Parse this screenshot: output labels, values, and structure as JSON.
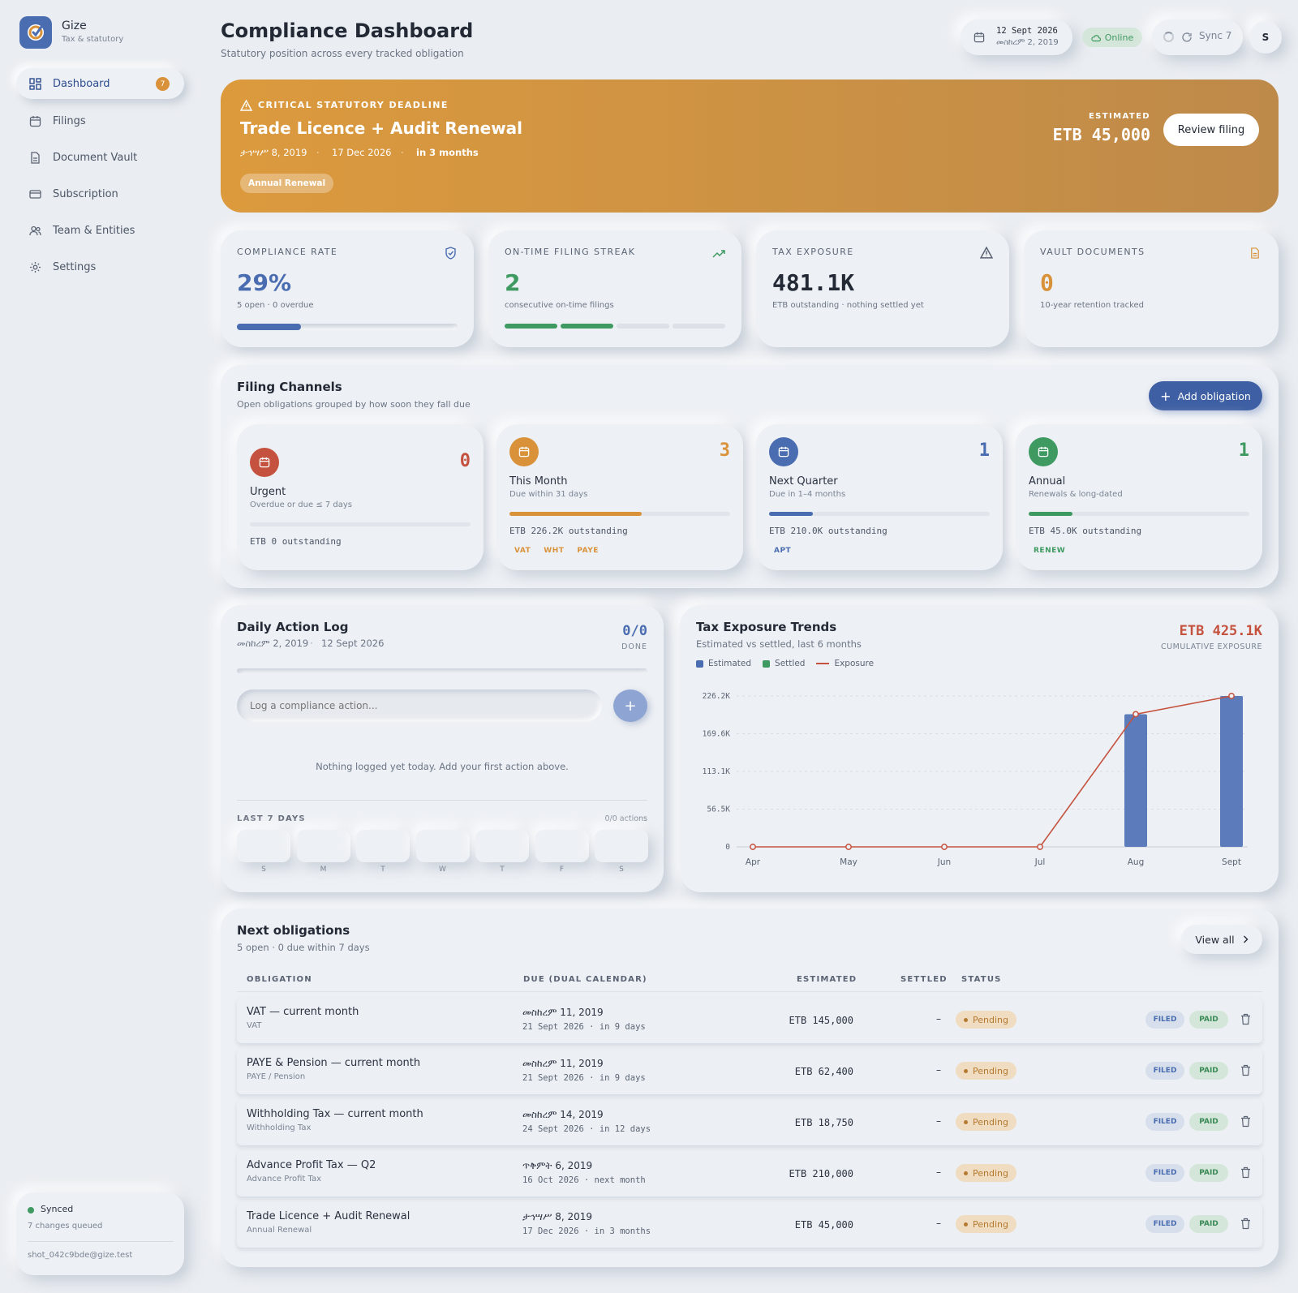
{
  "brand": {
    "name": "Gize",
    "sub": "Tax & statutory"
  },
  "nav": [
    {
      "label": "Dashboard",
      "icon": "dashboard-icon",
      "badge": "7"
    },
    {
      "label": "Filings",
      "icon": "calendar-icon"
    },
    {
      "label": "Document Vault",
      "icon": "document-icon"
    },
    {
      "label": "Subscription",
      "icon": "card-icon"
    },
    {
      "label": "Team & Entities",
      "icon": "team-icon"
    },
    {
      "label": "Settings",
      "icon": "gear-icon"
    }
  ],
  "sync": {
    "status": "Synced",
    "queued": "7 changes queued",
    "email": "shot_042c9bde@gize.test"
  },
  "header": {
    "title": "Compliance Dashboard",
    "subtitle": "Statutory position across every tracked obligation",
    "date_greg": "12 Sept 2026",
    "date_eth": "መስከረም 2, 2019",
    "online": "Online",
    "sync": "Sync 7",
    "avatar": "S"
  },
  "banner": {
    "kicker": "CRITICAL STATUTORY DEADLINE",
    "title": "Trade Licence + Audit Renewal",
    "date_eth": "ታኅሣሥ 8, 2019",
    "sep1": "·",
    "date_greg": "17 Dec 2026",
    "sep2": "·",
    "relative": "in 3 months",
    "tag": "Annual Renewal",
    "est_label": "ESTIMATED",
    "est_value": "ETB 45,000",
    "button": "Review filing"
  },
  "stats": [
    {
      "label": "COMPLIANCE RATE",
      "value": "29%",
      "note": "5 open · 0 overdue",
      "progress": 0.29,
      "color": "#4a6cb0"
    },
    {
      "label": "ON-TIME FILING STREAK",
      "value": "2",
      "note": "consecutive on-time filings",
      "segments_filled": 2,
      "segments_total": 4,
      "color": "#3f9a62"
    },
    {
      "label": "TAX EXPOSURE",
      "value": "481.1K",
      "note": "ETB outstanding · nothing settled yet",
      "color": "#232a36"
    },
    {
      "label": "VAULT DOCUMENTS",
      "value": "0",
      "note": "10-year retention tracked",
      "color": "#d9923a"
    }
  ],
  "channels": {
    "title": "Filing Channels",
    "subtitle": "Open obligations grouped by how soon they fall due",
    "add_button": "Add obligation",
    "items": [
      {
        "name": "Urgent",
        "desc": "Overdue or due ≤ 7 days",
        "count": "0",
        "outstanding": "ETB 0 outstanding",
        "progress": 0,
        "color": "#c5523f",
        "tags": []
      },
      {
        "name": "This Month",
        "desc": "Due within 31 days",
        "count": "3",
        "outstanding": "ETB 226.2K outstanding",
        "progress": 0.6,
        "color": "#d9923a",
        "tags": [
          "VAT",
          "WHT",
          "PAYE"
        ]
      },
      {
        "name": "Next Quarter",
        "desc": "Due in 1–4 months",
        "count": "1",
        "outstanding": "ETB 210.0K outstanding",
        "progress": 0.2,
        "color": "#4a6cb0",
        "tags": [
          "APT"
        ]
      },
      {
        "name": "Annual",
        "desc": "Renewals & long-dated",
        "count": "1",
        "outstanding": "ETB 45.0K outstanding",
        "progress": 0.2,
        "color": "#3f9a62",
        "tags": [
          "RENEW"
        ]
      }
    ]
  },
  "log": {
    "title": "Daily Action Log",
    "date_eth": "መስከረም 2, 2019",
    "sep": "·",
    "date_greg": "12 Sept 2026",
    "done_count": "0/0",
    "done_label": "DONE",
    "placeholder": "Log a compliance action...",
    "empty": "Nothing logged yet today. Add your first action above.",
    "last7_label": "LAST 7 DAYS",
    "last7_count": "0/0 actions",
    "days": [
      "S",
      "M",
      "T",
      "W",
      "T",
      "F",
      "S"
    ]
  },
  "chart_data": {
    "type": "bar",
    "title": "Tax Exposure Trends",
    "subtitle": "Estimated vs settled, last 6 months",
    "headline": "ETB 425.1K",
    "headline_label": "CUMULATIVE EXPOSURE",
    "categories": [
      "Apr",
      "May",
      "Jun",
      "Jul",
      "Aug",
      "Sept"
    ],
    "series": [
      {
        "name": "Estimated",
        "kind": "bar",
        "color": "#5b7bbb",
        "values": [
          0,
          0,
          0,
          0,
          198900,
          226200
        ]
      },
      {
        "name": "Settled",
        "kind": "bar",
        "color": "#3f9a62",
        "values": [
          0,
          0,
          0,
          0,
          0,
          0
        ]
      },
      {
        "name": "Exposure",
        "kind": "line",
        "color": "#c5523f",
        "values": [
          0,
          0,
          0,
          0,
          198900,
          226200
        ]
      }
    ],
    "y_ticks": [
      "0",
      "56.5K",
      "113.1K",
      "169.6K",
      "226.2K"
    ],
    "ylim": [
      0,
      226200
    ],
    "grid": true,
    "legend": "top-left"
  },
  "table": {
    "title": "Next obligations",
    "subtitle": "5 open · 0 due within 7 days",
    "view_all": "View all",
    "columns": [
      "OBLIGATION",
      "DUE (DUAL CALENDAR)",
      "ESTIMATED",
      "SETTLED",
      "STATUS"
    ],
    "rows": [
      {
        "name": "VAT — current month",
        "type": "VAT",
        "due_eth": "መስከረም 11, 2019",
        "due_greg": "21 Sept 2026 · in 9 days",
        "estimated": "ETB 145,000",
        "settled": "–",
        "status": "Pending",
        "filed": "FILED",
        "paid": "PAID"
      },
      {
        "name": "PAYE & Pension — current month",
        "type": "PAYE / Pension",
        "due_eth": "መስከረም 11, 2019",
        "due_greg": "21 Sept 2026 · in 9 days",
        "estimated": "ETB 62,400",
        "settled": "–",
        "status": "Pending",
        "filed": "FILED",
        "paid": "PAID"
      },
      {
        "name": "Withholding Tax — current month",
        "type": "Withholding Tax",
        "due_eth": "መስከረም 14, 2019",
        "due_greg": "24 Sept 2026 · in 12 days",
        "estimated": "ETB 18,750",
        "settled": "–",
        "status": "Pending",
        "filed": "FILED",
        "paid": "PAID"
      },
      {
        "name": "Advance Profit Tax — Q2",
        "type": "Advance Profit Tax",
        "due_eth": "ጥቅምት 6, 2019",
        "due_greg": "16 Oct 2026 · next month",
        "estimated": "ETB 210,000",
        "settled": "–",
        "status": "Pending",
        "filed": "FILED",
        "paid": "PAID"
      },
      {
        "name": "Trade Licence + Audit Renewal",
        "type": "Annual Renewal",
        "due_eth": "ታኅሣሥ 8, 2019",
        "due_greg": "17 Dec 2026 · in 3 months",
        "estimated": "ETB 45,000",
        "settled": "–",
        "status": "Pending",
        "filed": "FILED",
        "paid": "PAID"
      }
    ]
  }
}
